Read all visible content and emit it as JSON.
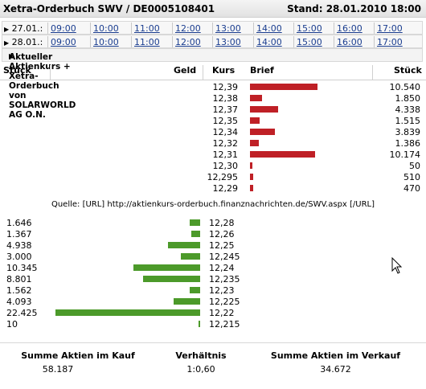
{
  "header": {
    "title": "Xetra-Orderbuch SWV / DE0005108401",
    "stand": "Stand: 28.01.2010 18:00"
  },
  "time_rows": [
    {
      "date": "27.01.:",
      "times": [
        "09:00",
        "10:00",
        "11:00",
        "12:00",
        "13:00",
        "14:00",
        "15:00",
        "16:00",
        "17:00"
      ]
    },
    {
      "date": "28.01.:",
      "times": [
        "09:00",
        "10:00",
        "11:00",
        "12:00",
        "13:00",
        "14:00",
        "15:00",
        "16:00",
        "17:00"
      ]
    }
  ],
  "section_heading": "Aktueller Aktienkurs + Xetra-Orderbuch von SOLARWORLD AG O.N.",
  "columns": {
    "stueck_left": "Stück",
    "geld": "Geld",
    "kurs": "Kurs",
    "brief": "Brief",
    "stueck_right": "Stück"
  },
  "ask_orders": [
    {
      "kurs": "12,39",
      "stueck": "10.540",
      "volume": 10540
    },
    {
      "kurs": "12,38",
      "stueck": "1.850",
      "volume": 1850
    },
    {
      "kurs": "12,37",
      "stueck": "4.338",
      "volume": 4338
    },
    {
      "kurs": "12,35",
      "stueck": "1.515",
      "volume": 1515
    },
    {
      "kurs": "12,34",
      "stueck": "3.839",
      "volume": 3839
    },
    {
      "kurs": "12,32",
      "stueck": "1.386",
      "volume": 1386
    },
    {
      "kurs": "12,31",
      "stueck": "10.174",
      "volume": 10174
    },
    {
      "kurs": "12,30",
      "stueck": "50",
      "volume": 50
    },
    {
      "kurs": "12,295",
      "stueck": "510",
      "volume": 510
    },
    {
      "kurs": "12,29",
      "stueck": "470",
      "volume": 470
    }
  ],
  "source_text": "Quelle: [URL] http://aktienkurs-orderbuch.finanznachrichten.de/SWV.aspx [/URL]",
  "bid_orders": [
    {
      "kurs": "12,28",
      "stueck": "1.646",
      "volume": 1646
    },
    {
      "kurs": "12,26",
      "stueck": "1.367",
      "volume": 1367
    },
    {
      "kurs": "12,25",
      "stueck": "4.938",
      "volume": 4938
    },
    {
      "kurs": "12,245",
      "stueck": "3.000",
      "volume": 3000
    },
    {
      "kurs": "12,24",
      "stueck": "10.345",
      "volume": 10345
    },
    {
      "kurs": "12,235",
      "stueck": "8.801",
      "volume": 8801
    },
    {
      "kurs": "12,23",
      "stueck": "1.562",
      "volume": 1562
    },
    {
      "kurs": "12,225",
      "stueck": "4.093",
      "volume": 4093
    },
    {
      "kurs": "12,22",
      "stueck": "22.425",
      "volume": 22425
    },
    {
      "kurs": "12,215",
      "stueck": "10",
      "volume": 10
    }
  ],
  "footer": {
    "kauf_label": "Summe Aktien im Kauf",
    "kauf_value": "58.187",
    "verh_label": "Verhältnis",
    "verh_value": "1:0,60",
    "verkauf_label": "Summe Aktien im Verkauf",
    "verkauf_value": "34.672"
  },
  "colors": {
    "ask_bar": "#bf2026",
    "bid_bar": "#4c9a2a",
    "link": "#1a3d8f"
  }
}
